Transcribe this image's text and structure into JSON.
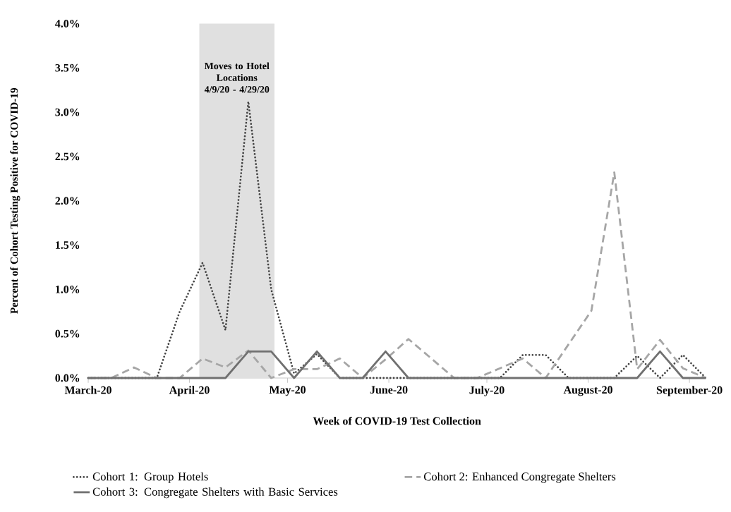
{
  "chart_data": {
    "type": "line",
    "xlabel": "Week of COVID-19 Test Collection",
    "ylabel": "Percent of Cohort Testing Positive for COVID-19",
    "x": [
      "2020-03-01",
      "2020-03-08",
      "2020-03-15",
      "2020-03-22",
      "2020-03-29",
      "2020-04-05",
      "2020-04-12",
      "2020-04-19",
      "2020-04-26",
      "2020-05-03",
      "2020-05-10",
      "2020-05-17",
      "2020-05-24",
      "2020-05-31",
      "2020-06-07",
      "2020-06-14",
      "2020-06-21",
      "2020-06-28",
      "2020-07-05",
      "2020-07-12",
      "2020-07-19",
      "2020-07-26",
      "2020-08-02",
      "2020-08-09",
      "2020-08-16",
      "2020-08-23",
      "2020-08-30",
      "2020-09-06"
    ],
    "series": [
      {
        "name": "Cohort 1: Group Hotels",
        "color": "#444444",
        "line_style": "dotted",
        "values": [
          0,
          0,
          0,
          0,
          0.75,
          1.3,
          0.54,
          3.12,
          1.0,
          0.05,
          0.27,
          0,
          0,
          0,
          0,
          0,
          0,
          0,
          0,
          0.26,
          0.26,
          0,
          0,
          0,
          0.25,
          0,
          0.26,
          0
        ]
      },
      {
        "name": "Cohort 2: Enhanced Congregate Shelters",
        "color": "#a6a6a6",
        "line_style": "dashed",
        "values": [
          0,
          0,
          0.12,
          0,
          0,
          0.22,
          0.12,
          0.31,
          0,
          0.1,
          0.1,
          0.22,
          0,
          0.21,
          0.44,
          0.22,
          0,
          0,
          0.11,
          0.22,
          0,
          0.38,
          0.76,
          2.32,
          0.1,
          0.43,
          0.11,
          0
        ]
      },
      {
        "name": "Cohort 3: Congregate Shelters with Basic Services",
        "color": "#707070",
        "line_style": "solid",
        "values": [
          0,
          0,
          0,
          0,
          0,
          0,
          0,
          0.3,
          0.3,
          0,
          0.3,
          0,
          0,
          0.3,
          0,
          0,
          0,
          0,
          0,
          0,
          0,
          0,
          0,
          0,
          0,
          0.3,
          0,
          0
        ]
      }
    ],
    "xlim": [
      "2020-03-01",
      "2020-09-06"
    ],
    "xticks": [
      {
        "value": "2020-03-01",
        "label": "March-20"
      },
      {
        "value": "2020-04-01",
        "label": "April-20"
      },
      {
        "value": "2020-05-01",
        "label": "May-20"
      },
      {
        "value": "2020-06-01",
        "label": "June-20"
      },
      {
        "value": "2020-07-01",
        "label": "July-20"
      },
      {
        "value": "2020-08-01",
        "label": "August-20"
      },
      {
        "value": "2020-09-01",
        "label": "September-20"
      }
    ],
    "ylim": [
      0,
      4.0
    ],
    "yticks": [
      {
        "value": 0,
        "label": "0.0%"
      },
      {
        "value": 0.5,
        "label": "0.5%"
      },
      {
        "value": 1.0,
        "label": "1.0%"
      },
      {
        "value": 1.5,
        "label": "1.5%"
      },
      {
        "value": 2.0,
        "label": "2.0%"
      },
      {
        "value": 2.5,
        "label": "2.5%"
      },
      {
        "value": 3.0,
        "label": "3.0%"
      },
      {
        "value": 3.5,
        "label": "3.5%"
      },
      {
        "value": 4.0,
        "label": "4.0%"
      }
    ],
    "bands": [
      {
        "axis": "x",
        "from": "2020-04-04",
        "to": "2020-04-27",
        "label": "Moves to Hotel Locations 4/9/20 - 4/29/20",
        "color": "#e0e0e0"
      }
    ],
    "marker": "none",
    "legend": "bottom"
  }
}
